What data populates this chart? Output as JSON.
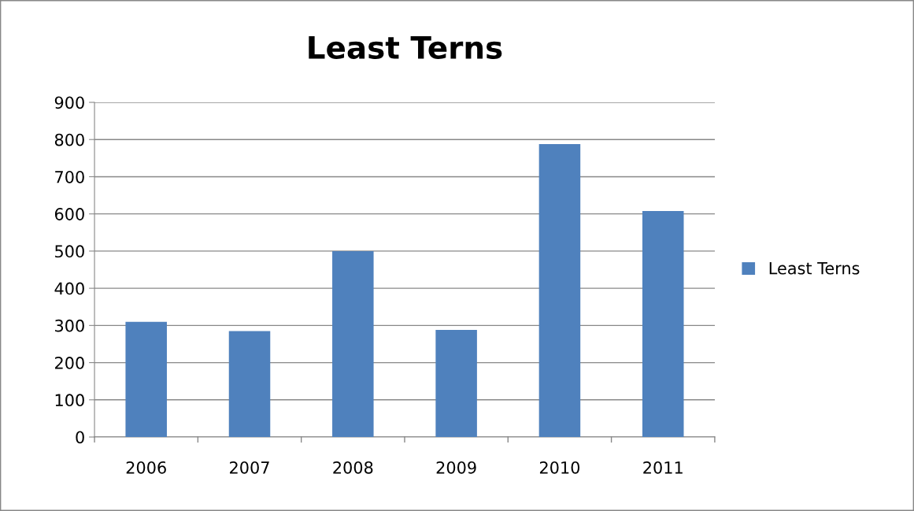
{
  "chart_data": {
    "type": "bar",
    "title": "Least Terns",
    "categories": [
      "2006",
      "2007",
      "2008",
      "2009",
      "2010",
      "2011"
    ],
    "series": [
      {
        "name": "Least Terns",
        "color": "#4f81bd",
        "values": [
          310,
          285,
          500,
          288,
          788,
          608
        ]
      }
    ],
    "ylim": [
      0,
      900
    ],
    "yticks": [
      0,
      100,
      200,
      300,
      400,
      500,
      600,
      700,
      800,
      900
    ],
    "grid": "y",
    "legend": "right"
  }
}
